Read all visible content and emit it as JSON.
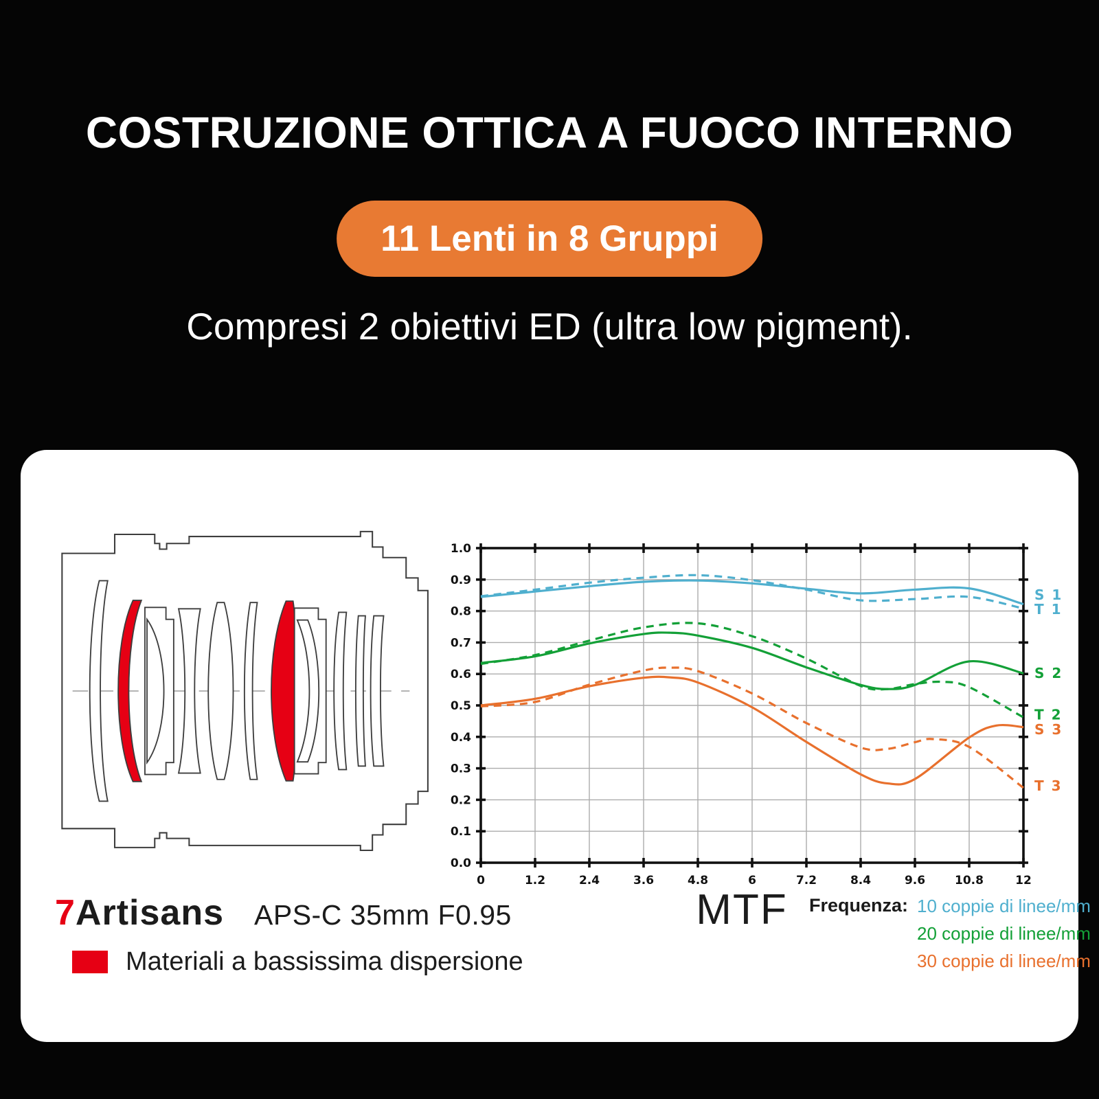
{
  "colors": {
    "background": "#050505",
    "card": "#FFFFFF",
    "badge_orange": "#E87A33",
    "ed_red": "#E60014",
    "curve_cyan": "#4FAFCE",
    "curve_green": "#13A037",
    "curve_orange": "#E8702D"
  },
  "header": {
    "title": "COSTRUZIONE OTTICA A FUOCO INTERNO",
    "badge": "11 Lenti in 8 Gruppi",
    "badge_color": "#E87A33",
    "subtitle": "Compresi 2 obiettivi ED (ultra low pigment)."
  },
  "card": {
    "brand": {
      "prefix": "7",
      "rest": "Artisans",
      "prefix_color": "#E60014"
    },
    "lens_model": "APS-C 35mm F0.95",
    "material_legend": {
      "swatch_color": "#E60014",
      "label": "Materiali a bassissima dispersione"
    },
    "chart_title": "MTF",
    "frequency_legend": {
      "label": "Frequenza:",
      "items": [
        {
          "text": "10 coppie di linee/mm",
          "color": "#4FAFCE"
        },
        {
          "text": "20 coppie di linee/mm",
          "color": "#13A037"
        },
        {
          "text": "30 coppie di linee/mm",
          "color": "#E8702D"
        }
      ]
    }
  },
  "chart_data": {
    "type": "line",
    "title": "MTF",
    "xlabel": "",
    "ylabel": "",
    "xlim": [
      0,
      12
    ],
    "ylim": [
      0,
      1
    ],
    "grid": true,
    "legend_position": "right",
    "x_ticks": [
      0,
      1.2,
      2.4,
      3.6,
      4.8,
      6,
      7.2,
      8.4,
      9.6,
      10.8,
      12
    ],
    "x_tick_labels": [
      "0",
      "1.2",
      "2.4",
      "3.6",
      "4.8",
      "6",
      "7.2",
      "8.4",
      "9.6",
      "10.8",
      "12"
    ],
    "y_ticks": [
      0,
      0.1,
      0.2,
      0.3,
      0.4,
      0.5,
      0.6,
      0.7,
      0.8,
      0.9,
      1.0
    ],
    "y_tick_labels": [
      "0.0",
      "0.1",
      "0.2",
      "0.3",
      "0.4",
      "0.5",
      "0.6",
      "0.7",
      "0.8",
      "0.9",
      "1.0"
    ],
    "series": [
      {
        "name": "S1 (10 coppie di linee/mm, sagittale)",
        "label": "S 1",
        "label_y": 0.851,
        "color": "#4FAFCE",
        "style": "solid",
        "points": [
          [
            0,
            0.845
          ],
          [
            1.2,
            0.862
          ],
          [
            2.4,
            0.879
          ],
          [
            3.6,
            0.893
          ],
          [
            4.8,
            0.897
          ],
          [
            6,
            0.888
          ],
          [
            7.2,
            0.871
          ],
          [
            8.4,
            0.856
          ],
          [
            9.6,
            0.868
          ],
          [
            10.8,
            0.872
          ],
          [
            12,
            0.822
          ]
        ]
      },
      {
        "name": "T1 (10 coppie di linee/mm, tangenziale)",
        "label": "T 1",
        "label_y": 0.806,
        "color": "#4FAFCE",
        "style": "dashed",
        "points": [
          [
            0,
            0.847
          ],
          [
            1.2,
            0.868
          ],
          [
            2.4,
            0.89
          ],
          [
            3.6,
            0.906
          ],
          [
            4.8,
            0.914
          ],
          [
            6,
            0.898
          ],
          [
            7.2,
            0.868
          ],
          [
            8.4,
            0.834
          ],
          [
            9.6,
            0.838
          ],
          [
            10.8,
            0.845
          ],
          [
            12,
            0.808
          ]
        ]
      },
      {
        "name": "S2 (20 coppie di linee/mm, sagittale)",
        "label": "S 2",
        "label_y": 0.603,
        "color": "#13A037",
        "style": "solid",
        "points": [
          [
            0,
            0.635
          ],
          [
            1.2,
            0.656
          ],
          [
            2.4,
            0.697
          ],
          [
            3.6,
            0.727
          ],
          [
            4.2,
            0.731
          ],
          [
            4.8,
            0.722
          ],
          [
            6,
            0.683
          ],
          [
            7.2,
            0.621
          ],
          [
            8.4,
            0.565
          ],
          [
            9,
            0.552
          ],
          [
            9.6,
            0.565
          ],
          [
            10.8,
            0.64
          ],
          [
            12,
            0.602
          ]
        ]
      },
      {
        "name": "T2 (20 coppie di linee/mm, tangenziale)",
        "label": "T 2",
        "label_y": 0.47,
        "color": "#13A037",
        "style": "dashed",
        "points": [
          [
            0,
            0.632
          ],
          [
            1.2,
            0.66
          ],
          [
            2.4,
            0.706
          ],
          [
            3.6,
            0.748
          ],
          [
            4.8,
            0.761
          ],
          [
            6,
            0.72
          ],
          [
            7.2,
            0.649
          ],
          [
            8.4,
            0.562
          ],
          [
            9,
            0.552
          ],
          [
            9.6,
            0.568
          ],
          [
            10.2,
            0.575
          ],
          [
            10.8,
            0.558
          ],
          [
            12,
            0.462
          ]
        ]
      },
      {
        "name": "S3 (30 coppie di linee/mm, sagittale)",
        "label": "S 3",
        "label_y": 0.424,
        "color": "#E8702D",
        "style": "solid",
        "points": [
          [
            0,
            0.5
          ],
          [
            1.2,
            0.521
          ],
          [
            2.4,
            0.561
          ],
          [
            3.6,
            0.588
          ],
          [
            4.2,
            0.589
          ],
          [
            4.8,
            0.573
          ],
          [
            6,
            0.494
          ],
          [
            7.2,
            0.384
          ],
          [
            8.4,
            0.281
          ],
          [
            9,
            0.252
          ],
          [
            9.6,
            0.266
          ],
          [
            10.8,
            0.398
          ],
          [
            11.4,
            0.436
          ],
          [
            12,
            0.431
          ]
        ]
      },
      {
        "name": "T3 (30 coppie di linee/mm, tangenziale)",
        "label": "T 3",
        "label_y": 0.245,
        "color": "#E8702D",
        "style": "dashed",
        "points": [
          [
            0,
            0.497
          ],
          [
            1.2,
            0.511
          ],
          [
            2.4,
            0.566
          ],
          [
            3.6,
            0.611
          ],
          [
            4.2,
            0.62
          ],
          [
            4.8,
            0.609
          ],
          [
            6,
            0.538
          ],
          [
            7.2,
            0.444
          ],
          [
            8.4,
            0.366
          ],
          [
            9,
            0.362
          ],
          [
            9.6,
            0.383
          ],
          [
            10,
            0.393
          ],
          [
            10.8,
            0.368
          ],
          [
            12,
            0.238
          ]
        ]
      }
    ]
  }
}
